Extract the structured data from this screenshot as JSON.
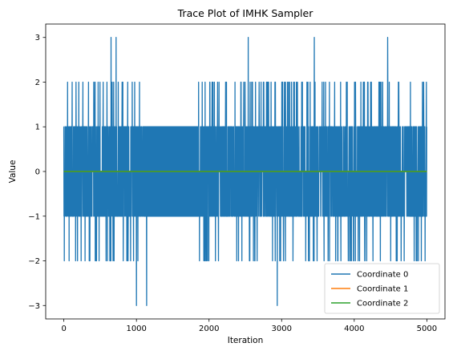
{
  "chart_data": {
    "type": "line",
    "title": "Trace Plot of IMHK Sampler",
    "xlabel": "Iteration",
    "ylabel": "Value",
    "xlim": [
      -250,
      5250
    ],
    "ylim": [
      -3.3,
      3.3
    ],
    "xticks": [
      0,
      1000,
      2000,
      3000,
      4000,
      5000
    ],
    "yticks": [
      -3,
      -2,
      -1,
      0,
      1,
      2,
      3
    ],
    "grid": false,
    "legend_position": "bottom-right",
    "n_iterations": 5000,
    "series": [
      {
        "name": "Coordinate 0",
        "color": "#1f77b4",
        "values_summary": "dense integer-valued trace oscillating mostly between -1 and 1 with frequent excursions to ±2 and rare ±3",
        "extreme_points": [
          {
            "x": 650,
            "y": 3
          },
          {
            "x": 720,
            "y": 3
          },
          {
            "x": 2540,
            "y": 3
          },
          {
            "x": 3450,
            "y": 3
          },
          {
            "x": 4460,
            "y": 3
          },
          {
            "x": 1000,
            "y": -3
          },
          {
            "x": 1140,
            "y": -3
          },
          {
            "x": 2940,
            "y": -3
          }
        ],
        "plateau": {
          "x": [
            1100,
            1850
          ],
          "y": [
            -1,
            1
          ]
        }
      },
      {
        "name": "Coordinate 1",
        "color": "#ff7f0e",
        "constant_value": 0
      },
      {
        "name": "Coordinate 2",
        "color": "#2ca02c",
        "constant_value": 0
      }
    ]
  }
}
